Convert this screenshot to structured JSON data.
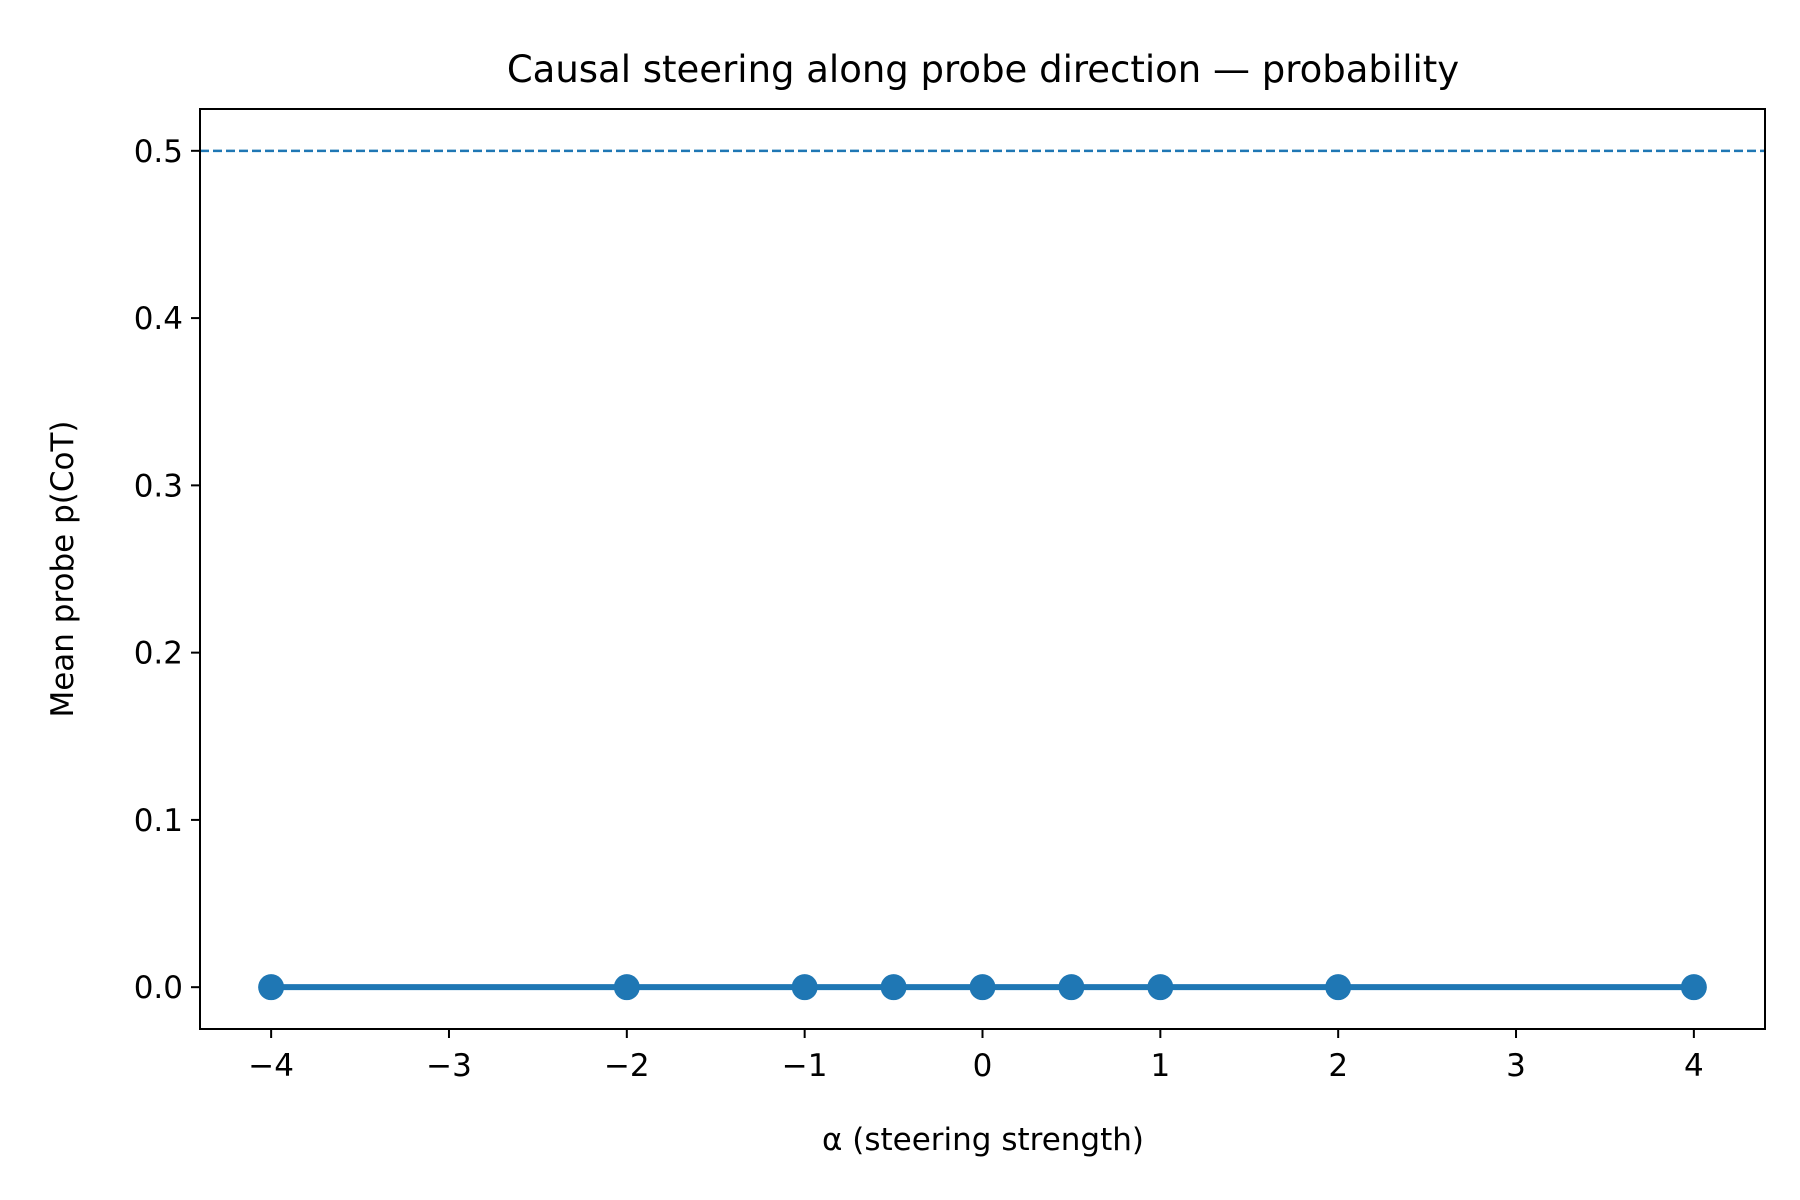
{
  "chart_data": {
    "type": "line",
    "title": "Causal steering along probe direction — probability",
    "xlabel": "α (steering strength)",
    "ylabel": "Mean probe p(CoT)",
    "xlim": [
      -4.4,
      4.4
    ],
    "ylim": [
      -0.025,
      0.525
    ],
    "xticks": [
      -4,
      -3,
      -2,
      -1,
      0,
      1,
      2,
      3,
      4
    ],
    "xtick_labels": [
      "−4",
      "−3",
      "−2",
      "−1",
      "0",
      "1",
      "2",
      "3",
      "4"
    ],
    "yticks": [
      0.0,
      0.1,
      0.2,
      0.3,
      0.4,
      0.5
    ],
    "ytick_labels": [
      "0.0",
      "0.1",
      "0.2",
      "0.3",
      "0.4",
      "0.5"
    ],
    "grid": false,
    "legend": "none",
    "series": [
      {
        "x": [
          -4,
          -2,
          -1,
          -0.5,
          0,
          0.5,
          1,
          2,
          4
        ],
        "values": [
          0.0,
          0.0,
          0.0,
          0.0,
          0.0,
          0.0,
          0.0,
          0.0,
          0.0
        ],
        "color": "#1f77b4",
        "marker": "circle"
      }
    ],
    "reference_lines": [
      {
        "orientation": "horizontal",
        "y": 0.5,
        "style": "dashed",
        "color": "#1f77b4"
      }
    ]
  }
}
